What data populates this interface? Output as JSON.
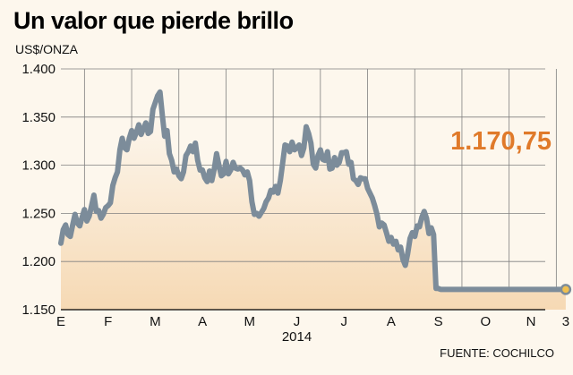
{
  "title": "Un valor que pierde brillo",
  "unit_label": "US$/ONZA",
  "source": "FUENTE: COCHILCO",
  "colors": {
    "line": "#7c8c9a",
    "callout": "#e07a2a",
    "marker": "#f0c050",
    "grid": "#808080"
  },
  "chart_data": {
    "type": "area",
    "title": "Un valor que pierde brillo",
    "ylabel": "US$/ONZA",
    "xlabel": "2014",
    "ylim": [
      1150,
      1400
    ],
    "y_ticks": [
      1150,
      1200,
      1250,
      1300,
      1350,
      1400
    ],
    "y_tick_labels": [
      "1.150",
      "1.200",
      "1.250",
      "1.300",
      "1.350",
      "1.400"
    ],
    "x_ticks": [
      "E",
      "F",
      "M",
      "A",
      "M",
      "J",
      "J",
      "A",
      "S",
      "O",
      "N",
      "3"
    ],
    "year_label": "2014",
    "grid": true,
    "last_value_label": "1.170,75",
    "last_value": 1170.75,
    "series": [
      {
        "x": [
          0,
          0.05,
          0.1,
          0.15,
          0.2,
          0.25,
          0.3,
          0.35,
          0.4,
          0.45,
          0.5,
          0.55,
          0.6,
          0.65,
          0.7,
          0.75,
          0.8,
          0.85,
          0.9,
          0.95,
          1.0,
          1.05,
          1.1,
          1.15,
          1.2,
          1.25,
          1.3,
          1.35,
          1.4,
          1.45,
          1.5,
          1.55,
          1.6,
          1.65,
          1.7,
          1.75,
          1.8,
          1.85,
          1.9,
          1.95,
          2.0,
          2.05,
          2.1,
          2.15,
          2.2,
          2.25,
          2.3,
          2.35,
          2.4,
          2.45,
          2.5,
          2.55,
          2.6,
          2.65,
          2.7,
          2.75,
          2.8,
          2.85,
          2.9,
          2.95,
          3.0,
          3.05,
          3.1,
          3.15,
          3.2,
          3.25,
          3.3,
          3.35,
          3.4,
          3.45,
          3.5,
          3.55,
          3.6,
          3.65,
          3.7,
          3.75,
          3.8,
          3.85,
          3.9,
          3.95,
          4.0,
          4.05,
          4.1,
          4.15,
          4.2,
          4.25,
          4.3,
          4.35,
          4.4,
          4.45,
          4.5,
          4.55,
          4.6,
          4.65,
          4.7,
          4.75,
          4.8,
          4.85,
          4.9,
          4.95,
          5.0,
          5.05,
          5.1,
          5.15,
          5.2,
          5.25,
          5.3,
          5.35,
          5.4,
          5.45,
          5.5,
          5.55,
          5.6,
          5.65,
          5.7,
          5.75,
          5.8,
          5.85,
          5.9,
          5.95,
          6.0,
          6.05,
          6.1,
          6.15,
          6.2,
          6.25,
          6.3,
          6.35,
          6.4,
          6.45,
          6.5,
          6.55,
          6.6,
          6.65,
          6.7,
          6.75,
          6.8,
          6.85,
          6.9,
          6.95,
          7.0,
          7.05,
          7.1,
          7.15,
          7.2,
          7.25,
          7.3,
          7.35,
          7.4,
          7.45,
          7.5,
          7.55,
          7.6,
          7.65,
          7.7,
          7.75,
          7.8,
          7.85,
          7.9,
          7.95,
          8.0,
          8.05,
          8.1,
          8.15,
          8.2,
          8.25,
          8.3,
          8.35,
          8.4,
          8.45,
          8.5,
          8.55,
          8.6,
          8.65,
          8.7,
          8.75,
          8.8,
          8.85,
          8.9,
          8.95,
          9.0,
          9.05,
          9.1,
          9.15,
          9.2,
          9.25,
          9.3,
          9.35,
          9.4,
          9.45,
          9.5,
          9.55,
          9.6,
          9.65,
          9.7,
          9.75,
          9.8,
          9.85,
          9.9,
          9.95,
          10.0,
          10.05,
          10.1,
          10.15,
          10.2,
          10.25,
          10.3,
          10.35,
          10.4,
          10.45,
          10.5,
          10.55,
          10.6,
          10.65,
          10.7
        ],
        "y": [
          1219,
          1233,
          1238,
          1228,
          1226,
          1238,
          1249,
          1240,
          1237,
          1246,
          1254,
          1242,
          1247,
          1258,
          1269,
          1252,
          1253,
          1245,
          1249,
          1256,
          1258,
          1261,
          1279,
          1287,
          1293,
          1316,
          1328,
          1318,
          1316,
          1328,
          1336,
          1328,
          1334,
          1342,
          1332,
          1338,
          1344,
          1333,
          1335,
          1358,
          1365,
          1372,
          1376,
          1352,
          1330,
          1336,
          1312,
          1305,
          1293,
          1296,
          1289,
          1286,
          1293,
          1310,
          1314,
          1320,
          1314,
          1323,
          1305,
          1295,
          1295,
          1287,
          1283,
          1294,
          1284,
          1296,
          1312,
          1300,
          1289,
          1291,
          1304,
          1291,
          1295,
          1303,
          1297,
          1296,
          1297,
          1295,
          1290,
          1293,
          1284,
          1262,
          1249,
          1250,
          1247,
          1251,
          1255,
          1262,
          1266,
          1274,
          1272,
          1278,
          1271,
          1284,
          1302,
          1321,
          1320,
          1314,
          1324,
          1316,
          1318,
          1321,
          1310,
          1318,
          1340,
          1333,
          1323,
          1301,
          1297,
          1310,
          1316,
          1306,
          1305,
          1314,
          1296,
          1297,
          1308,
          1300,
          1303,
          1313,
          1313,
          1314,
          1301,
          1303,
          1286,
          1284,
          1280,
          1287,
          1286,
          1286,
          1276,
          1271,
          1266,
          1258,
          1249,
          1236,
          1240,
          1238,
          1230,
          1221,
          1225,
          1218,
          1221,
          1212,
          1215,
          1202,
          1196,
          1208,
          1224,
          1230,
          1226,
          1237,
          1236,
          1246,
          1252,
          1245,
          1229,
          1235,
          1228,
          1172,
          1172,
          1171,
          1171,
          1171,
          1171,
          1171,
          1171,
          1171,
          1171,
          1171,
          1171,
          1171,
          1171,
          1171,
          1171,
          1171,
          1171,
          1171,
          1171,
          1171,
          1171,
          1171,
          1171,
          1171,
          1171,
          1171,
          1171,
          1171,
          1171,
          1171,
          1171,
          1171,
          1171,
          1171,
          1171,
          1171,
          1171,
          1171,
          1171,
          1171,
          1171,
          1171,
          1171,
          1171,
          1171,
          1171,
          1171,
          1171,
          1171,
          1171,
          1171,
          1171,
          1171,
          1171,
          1171
        ]
      }
    ]
  }
}
